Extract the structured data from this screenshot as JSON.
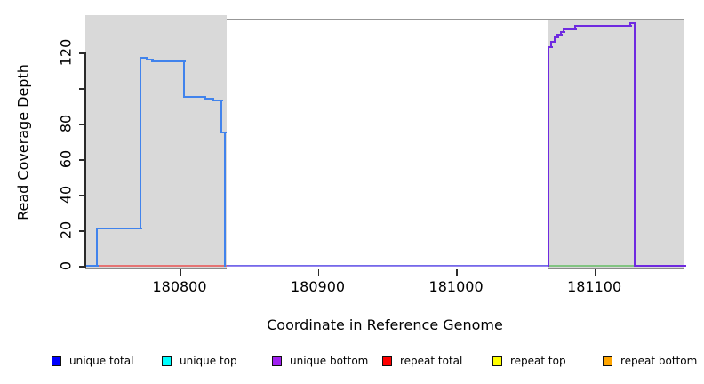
{
  "figure": {
    "background": "#ffffff"
  },
  "chart_data": {
    "type": "line",
    "subtype": "step-coverage-plot",
    "title": "",
    "xlabel": "Coordinate in Reference Genome",
    "ylabel": "Read Coverage Depth",
    "xlim": [
      180732,
      181165
    ],
    "ylim": [
      0,
      141
    ],
    "grid": false,
    "legend_position": "bottom",
    "x_ticks": [
      {
        "value": 180800,
        "label": "180800"
      },
      {
        "value": 180900,
        "label": "180900"
      },
      {
        "value": 181000,
        "label": "181000"
      },
      {
        "value": 181100,
        "label": "181100"
      }
    ],
    "y_ticks": [
      {
        "value": 0,
        "label": "0"
      },
      {
        "value": 20,
        "label": "20"
      },
      {
        "value": 40,
        "label": "40"
      },
      {
        "value": 60,
        "label": "60"
      },
      {
        "value": 80,
        "label": "80"
      },
      {
        "value": 100,
        "label": ""
      },
      {
        "value": 120,
        "label": "120"
      }
    ],
    "shaded_regions": [
      {
        "name": "left-gray-block",
        "x0": 180732,
        "x1": 180834,
        "color": "#d9d9d9"
      },
      {
        "name": "right-gray-block",
        "x0": 181067,
        "x1": 181165,
        "color": "#d9d9d9"
      }
    ],
    "segments": [
      {
        "name": "repeat-total-baseline",
        "color": "#e57373",
        "color2": null,
        "points": [
          [
            180732,
            0
          ],
          [
            180834,
            0
          ]
        ]
      },
      {
        "name": "unique-total-unique-bottom-overlap-baseline",
        "color": "#5f5fe6",
        "color2": "#a98ff2",
        "points": [
          [
            180834,
            0
          ],
          [
            181067,
            0
          ]
        ]
      },
      {
        "name": "top-strand-overlap-baseline",
        "color": "#82c482",
        "color2": null,
        "points": [
          [
            181067,
            0
          ],
          [
            181129,
            0
          ]
        ]
      },
      {
        "name": "unique-total-coverage",
        "color": "#4183ec",
        "color2": null,
        "points": [
          [
            180732,
            0
          ],
          [
            180740,
            0
          ],
          [
            180740,
            21
          ],
          [
            180772,
            21
          ],
          [
            180772,
            117
          ],
          [
            180776,
            117
          ],
          [
            180776,
            116
          ],
          [
            180780,
            116
          ],
          [
            180780,
            115
          ],
          [
            180803,
            115
          ],
          [
            180803,
            95
          ],
          [
            180818,
            95
          ],
          [
            180818,
            94
          ],
          [
            180824,
            94
          ],
          [
            180824,
            93
          ],
          [
            180830,
            93
          ],
          [
            180830,
            75
          ],
          [
            180833,
            75
          ],
          [
            180833,
            0
          ]
        ]
      },
      {
        "name": "unique-bottom-coverage",
        "color": "#6f2ae0",
        "color2": null,
        "points": [
          [
            181067,
            0
          ],
          [
            181067,
            123
          ],
          [
            181069,
            123
          ],
          [
            181069,
            126
          ],
          [
            181071,
            126
          ],
          [
            181071,
            128.5
          ],
          [
            181073,
            128.5
          ],
          [
            181073,
            130
          ],
          [
            181076,
            130
          ],
          [
            181076,
            131.5
          ],
          [
            181078,
            131.5
          ],
          [
            181078,
            133
          ],
          [
            181086,
            133
          ],
          [
            181086,
            135
          ],
          [
            181126,
            135
          ],
          [
            181126,
            136.5
          ],
          [
            181129,
            136.5
          ],
          [
            181129,
            0
          ],
          [
            181165,
            0
          ]
        ]
      }
    ],
    "legend": [
      {
        "label": "unique total",
        "color": "#0000ff"
      },
      {
        "label": "unique top",
        "color": "#00ffff"
      },
      {
        "label": "unique bottom",
        "color": "#a020f0"
      },
      {
        "label": "repeat total",
        "color": "#ff0000"
      },
      {
        "label": "repeat top",
        "color": "#ffff00"
      },
      {
        "label": "repeat bottom",
        "color": "#ffa500"
      }
    ]
  }
}
